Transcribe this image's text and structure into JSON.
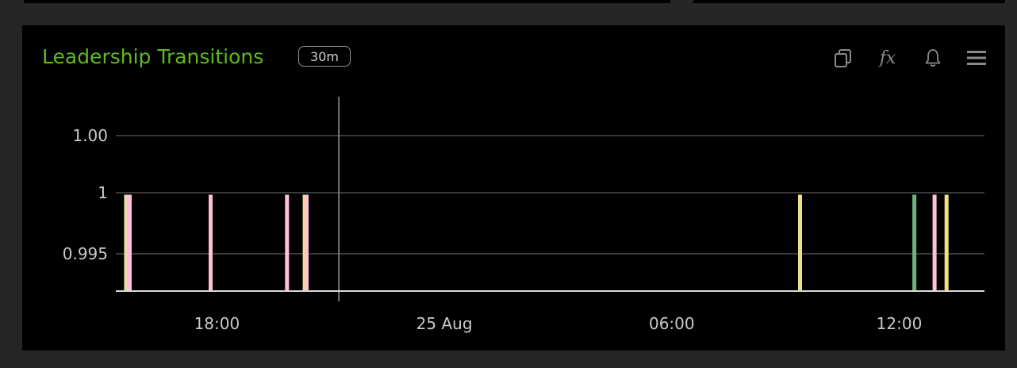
{
  "panel": {
    "title": "Leadership Transitions",
    "badge": "30m",
    "icons": [
      "copy-icon",
      "fx-icon",
      "bell-icon",
      "menu-icon"
    ],
    "icon_labels": {
      "fx": "fx"
    }
  },
  "colors": {
    "title": "#5fb81f",
    "background": "#000000",
    "grid": "#4a4a4a",
    "axis": "#d9d9d9",
    "green": "#6fb27a",
    "yellow": "#f2df85",
    "pink": "#ffc0dd"
  },
  "chart_data": {
    "type": "bar",
    "title": "Leadership Transitions",
    "xlabel": "",
    "ylabel": "",
    "y_ticks": [
      {
        "value": 1.005,
        "label": "1.00"
      },
      {
        "value": 1.0,
        "label": "1"
      },
      {
        "value": 0.995,
        "label": "0.995"
      }
    ],
    "ylim": [
      0.992,
      1.007
    ],
    "x_ticks": [
      "18:00",
      "25 Aug",
      "06:00",
      "12:00"
    ],
    "x_range": [
      "2024-08-24T15:20",
      "2024-08-25T14:15"
    ],
    "x_tick_times": [
      "2024-08-24T18:00",
      "2024-08-25T00:00",
      "2024-08-25T06:00",
      "2024-08-25T12:00"
    ],
    "crosshair_time": "2024-08-24T21:13",
    "grid": true,
    "series": [
      {
        "color": "#6fb27a",
        "points": [
          {
            "x": "2024-08-24T15:36",
            "y": 1
          },
          {
            "x": "2024-08-25T12:24",
            "y": 1
          }
        ]
      },
      {
        "color": "#f2df85",
        "points": [
          {
            "x": "2024-08-24T15:37",
            "y": 1
          },
          {
            "x": "2024-08-24T20:19",
            "y": 1
          },
          {
            "x": "2024-08-25T09:23",
            "y": 1
          },
          {
            "x": "2024-08-25T13:15",
            "y": 1
          }
        ]
      },
      {
        "color": "#ffc0dd",
        "points": [
          {
            "x": "2024-08-24T15:40",
            "y": 1
          },
          {
            "x": "2024-08-24T15:42",
            "y": 1
          },
          {
            "x": "2024-08-24T17:50",
            "y": 1
          },
          {
            "x": "2024-08-24T19:51",
            "y": 1
          },
          {
            "x": "2024-08-24T20:22",
            "y": 1
          },
          {
            "x": "2024-08-25T12:56",
            "y": 1
          }
        ]
      }
    ]
  }
}
